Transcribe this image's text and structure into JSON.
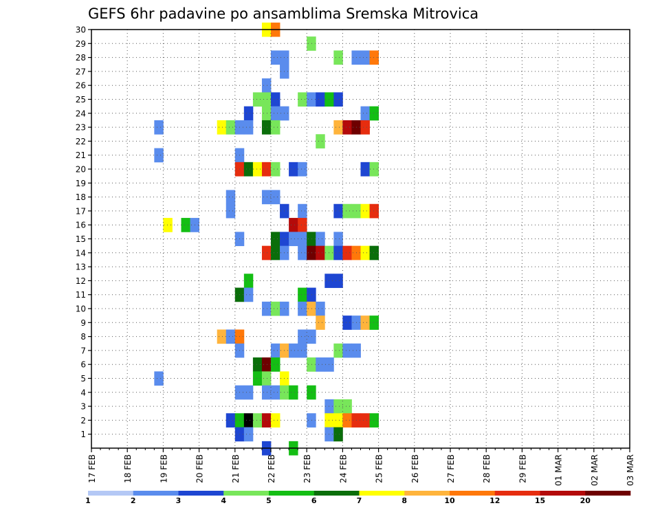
{
  "chart_data": {
    "type": "heatmap",
    "title": "GEFS 6hr padavine po ansamblima Sremska Mitrovica",
    "xlabel": "",
    "ylabel": "",
    "y_members": [
      1,
      30
    ],
    "x_tick_labels": [
      "17 FEB",
      "18 FEB",
      "19 FEB",
      "20 FEB",
      "21 FEB",
      "22 FEB",
      "23 FEB",
      "24 FEB",
      "25 FEB",
      "26 FEB",
      "27 FEB",
      "28 FEB",
      "29 FEB",
      "01 MAR",
      "02 MAR",
      "03 MAR"
    ],
    "y_tick_labels": [
      "1",
      "2",
      "3",
      "4",
      "5",
      "6",
      "7",
      "8",
      "9",
      "10",
      "11",
      "12",
      "13",
      "14",
      "15",
      "16",
      "17",
      "18",
      "19",
      "20",
      "21",
      "22",
      "23",
      "24",
      "25",
      "26",
      "27",
      "28",
      "29",
      "30"
    ],
    "grid": true,
    "legend": {
      "placement": "bottom",
      "colors": [
        "#b4c8f5",
        "#5a8ced",
        "#1e46d2",
        "#78e65a",
        "#14be14",
        "#0a6e0a",
        "#ffff00",
        "#ffb43c",
        "#ff780a",
        "#e62d0f",
        "#b40a0a",
        "#6e0000"
      ],
      "labels": [
        "1",
        "2",
        "3",
        "4",
        "5",
        "6",
        "7",
        "8",
        "10",
        "12",
        "15",
        "20"
      ]
    },
    "cells": [
      [
        30,
        19,
        6
      ],
      [
        30,
        20,
        8
      ],
      [
        29,
        24,
        3
      ],
      [
        28,
        20,
        1
      ],
      [
        28,
        21,
        1
      ],
      [
        28,
        27,
        3
      ],
      [
        28,
        29,
        1
      ],
      [
        28,
        30,
        1
      ],
      [
        28,
        31,
        8
      ],
      [
        27,
        21,
        1
      ],
      [
        26,
        19,
        1
      ],
      [
        25,
        18,
        3
      ],
      [
        25,
        19,
        3
      ],
      [
        25,
        20,
        2
      ],
      [
        25,
        23,
        3
      ],
      [
        25,
        24,
        1
      ],
      [
        25,
        25,
        2
      ],
      [
        25,
        26,
        4
      ],
      [
        25,
        27,
        2
      ],
      [
        24,
        17,
        2
      ],
      [
        24,
        19,
        3
      ],
      [
        24,
        20,
        1
      ],
      [
        24,
        21,
        1
      ],
      [
        24,
        30,
        1
      ],
      [
        24,
        31,
        4
      ],
      [
        23,
        7,
        1
      ],
      [
        23,
        14,
        6
      ],
      [
        23,
        15,
        3
      ],
      [
        23,
        16,
        1
      ],
      [
        23,
        17,
        1
      ],
      [
        23,
        19,
        5
      ],
      [
        23,
        20,
        3
      ],
      [
        23,
        27,
        7
      ],
      [
        23,
        28,
        10
      ],
      [
        23,
        29,
        11
      ],
      [
        23,
        30,
        9
      ],
      [
        22,
        25,
        3
      ],
      [
        21,
        7,
        1
      ],
      [
        21,
        16,
        1
      ],
      [
        20,
        16,
        9
      ],
      [
        20,
        17,
        5
      ],
      [
        20,
        18,
        6
      ],
      [
        20,
        19,
        9
      ],
      [
        20,
        20,
        3
      ],
      [
        20,
        22,
        2
      ],
      [
        20,
        23,
        1
      ],
      [
        20,
        30,
        2
      ],
      [
        20,
        31,
        3
      ],
      [
        18,
        15,
        1
      ],
      [
        18,
        19,
        1
      ],
      [
        18,
        20,
        1
      ],
      [
        17,
        15,
        1
      ],
      [
        17,
        21,
        2
      ],
      [
        17,
        23,
        1
      ],
      [
        17,
        27,
        2
      ],
      [
        17,
        28,
        3
      ],
      [
        17,
        29,
        3
      ],
      [
        17,
        30,
        6
      ],
      [
        17,
        31,
        9
      ],
      [
        16,
        8,
        6
      ],
      [
        16,
        10,
        4
      ],
      [
        16,
        11,
        1
      ],
      [
        16,
        22,
        10
      ],
      [
        16,
        23,
        9
      ],
      [
        15,
        16,
        1
      ],
      [
        15,
        20,
        5
      ],
      [
        15,
        21,
        2
      ],
      [
        15,
        22,
        1
      ],
      [
        15,
        23,
        1
      ],
      [
        15,
        24,
        5
      ],
      [
        15,
        25,
        1
      ],
      [
        15,
        27,
        1
      ],
      [
        14,
        19,
        9
      ],
      [
        14,
        20,
        5
      ],
      [
        14,
        21,
        1
      ],
      [
        14,
        23,
        1
      ],
      [
        14,
        24,
        11
      ],
      [
        14,
        25,
        10
      ],
      [
        14,
        26,
        3
      ],
      [
        14,
        27,
        2
      ],
      [
        14,
        28,
        9
      ],
      [
        14,
        29,
        8
      ],
      [
        14,
        30,
        6
      ],
      [
        14,
        31,
        5
      ],
      [
        12,
        17,
        4
      ],
      [
        12,
        26,
        2
      ],
      [
        12,
        27,
        2
      ],
      [
        11,
        16,
        5
      ],
      [
        11,
        17,
        1
      ],
      [
        11,
        23,
        4
      ],
      [
        11,
        24,
        2
      ],
      [
        10,
        19,
        1
      ],
      [
        10,
        20,
        3
      ],
      [
        10,
        21,
        1
      ],
      [
        10,
        23,
        1
      ],
      [
        10,
        24,
        7
      ],
      [
        10,
        25,
        1
      ],
      [
        9,
        25,
        7
      ],
      [
        9,
        28,
        2
      ],
      [
        9,
        29,
        1
      ],
      [
        9,
        30,
        7
      ],
      [
        9,
        31,
        4
      ],
      [
        8,
        14,
        7
      ],
      [
        8,
        15,
        1
      ],
      [
        8,
        16,
        8
      ],
      [
        8,
        23,
        1
      ],
      [
        8,
        24,
        1
      ],
      [
        7,
        16,
        1
      ],
      [
        7,
        20,
        1
      ],
      [
        7,
        21,
        7
      ],
      [
        7,
        22,
        1
      ],
      [
        7,
        23,
        1
      ],
      [
        7,
        27,
        3
      ],
      [
        7,
        28,
        1
      ],
      [
        7,
        29,
        1
      ],
      [
        6,
        18,
        5
      ],
      [
        6,
        19,
        11
      ],
      [
        6,
        20,
        4
      ],
      [
        6,
        24,
        3
      ],
      [
        6,
        25,
        1
      ],
      [
        6,
        26,
        1
      ],
      [
        5,
        7,
        1
      ],
      [
        5,
        18,
        4
      ],
      [
        5,
        19,
        3
      ],
      [
        5,
        21,
        6
      ],
      [
        4,
        16,
        1
      ],
      [
        4,
        17,
        1
      ],
      [
        4,
        19,
        1
      ],
      [
        4,
        20,
        1
      ],
      [
        4,
        21,
        3
      ],
      [
        4,
        22,
        4
      ],
      [
        4,
        24,
        4
      ],
      [
        3,
        26,
        1
      ],
      [
        3,
        27,
        3
      ],
      [
        3,
        28,
        3
      ],
      [
        2,
        15,
        2
      ],
      [
        2,
        16,
        4
      ],
      [
        2,
        17,
        12
      ],
      [
        2,
        18,
        3
      ],
      [
        2,
        19,
        10
      ],
      [
        2,
        20,
        6
      ],
      [
        2,
        24,
        1
      ],
      [
        2,
        26,
        6
      ],
      [
        2,
        27,
        6
      ],
      [
        2,
        28,
        8
      ],
      [
        2,
        29,
        9
      ],
      [
        2,
        30,
        9
      ],
      [
        2,
        31,
        4
      ],
      [
        1,
        16,
        2
      ],
      [
        1,
        17,
        1
      ],
      [
        1,
        26,
        1
      ],
      [
        1,
        27,
        5
      ],
      [
        0,
        19,
        2
      ],
      [
        0,
        22,
        4
      ]
    ]
  }
}
